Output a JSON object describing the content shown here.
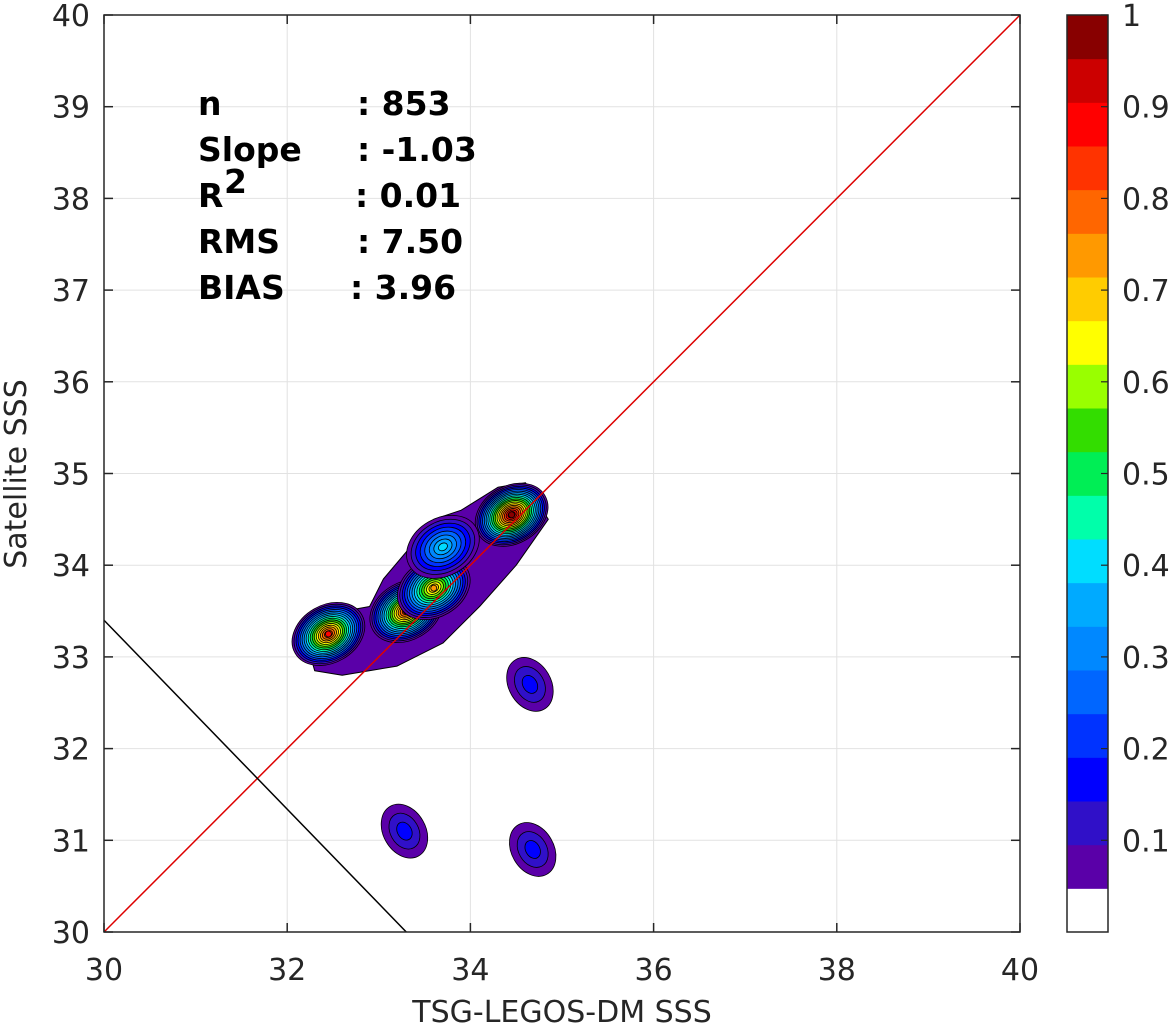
{
  "chart_data": {
    "type": "contour",
    "xlabel": "TSG-LEGOS-DM SSS",
    "ylabel": "Satellite SSS",
    "xlim": [
      30,
      40
    ],
    "ylim": [
      30,
      40
    ],
    "xticks": [
      "30",
      "32",
      "34",
      "36",
      "38",
      "40"
    ],
    "yticks": [
      "30",
      "31",
      "32",
      "33",
      "34",
      "35",
      "36",
      "37",
      "38",
      "39",
      "40"
    ],
    "grid": true,
    "stats": [
      {
        "name": "n",
        "value": ": 853"
      },
      {
        "name": "Slope",
        "value": ": -1.03"
      },
      {
        "name": "R",
        "superscript": "2",
        "value": ": 0.01"
      },
      {
        "name": "RMS",
        "value": ": 7.50"
      },
      {
        "name": "BIAS",
        "value": ": 3.96"
      }
    ],
    "identity_line": {
      "from": [
        30,
        30
      ],
      "to": [
        40,
        40
      ],
      "color": "#dd0000"
    },
    "fit_line": {
      "from": [
        30,
        33.4
      ],
      "to": [
        33.3,
        30
      ],
      "color": "#000000"
    },
    "density_peaks": [
      {
        "x": 32.45,
        "y": 33.25,
        "peak": 0.85
      },
      {
        "x": 33.3,
        "y": 33.5,
        "peak": 0.85
      },
      {
        "x": 33.6,
        "y": 33.75,
        "peak": 0.72
      },
      {
        "x": 34.45,
        "y": 34.55,
        "peak": 0.95
      },
      {
        "x": 33.7,
        "y": 34.2,
        "peak": 0.4
      },
      {
        "x": 34.65,
        "y": 32.7,
        "peak": 0.12
      },
      {
        "x": 33.28,
        "y": 31.1,
        "peak": 0.12
      },
      {
        "x": 34.68,
        "y": 30.9,
        "peak": 0.12
      }
    ],
    "colorbar": {
      "ticks": [
        "0.1",
        "0.2",
        "0.3",
        "0.4",
        "0.5",
        "0.6",
        "0.7",
        "0.8",
        "0.9",
        "1"
      ],
      "range": [
        0,
        1
      ],
      "colors": [
        "#ffffff",
        "#5a00a8",
        "#3010c8",
        "#0000ff",
        "#0033ff",
        "#0066ff",
        "#0088ff",
        "#00aaff",
        "#00ddff",
        "#00ffaa",
        "#00ee55",
        "#33dd00",
        "#99ff00",
        "#ffff00",
        "#ffcc00",
        "#ff9900",
        "#ff6600",
        "#ff3300",
        "#ff0000",
        "#cc0000",
        "#880000"
      ]
    }
  }
}
